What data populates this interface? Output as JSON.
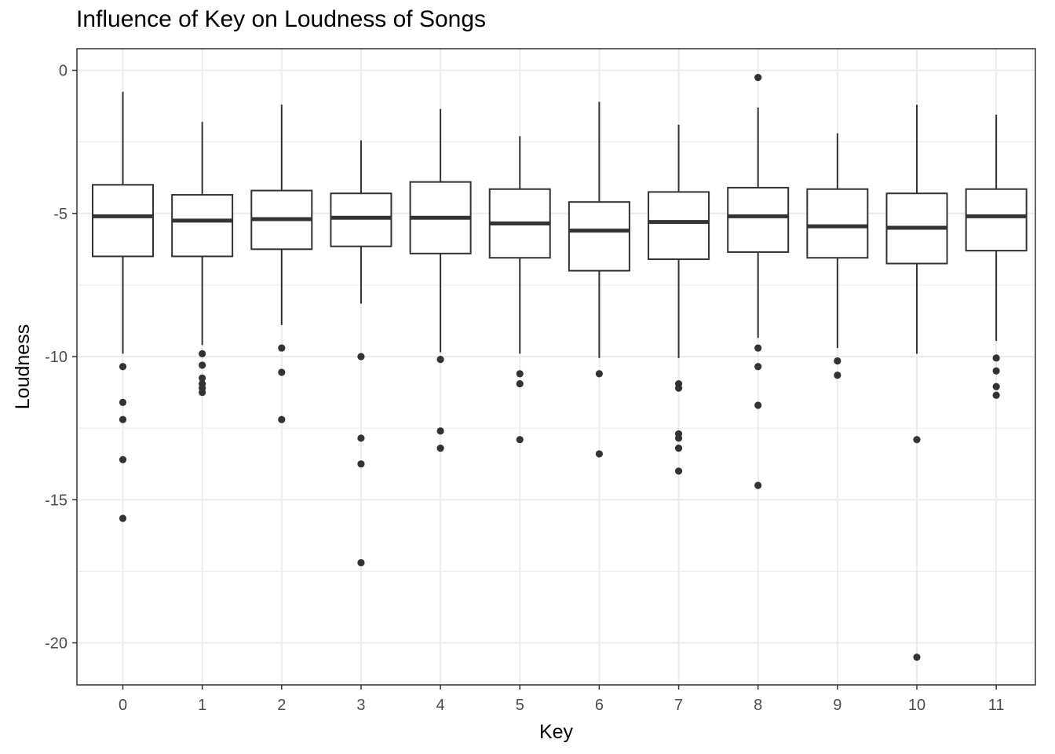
{
  "chart_data": {
    "type": "boxplot",
    "title": "Influence of Key on Loudness of Songs",
    "xlabel": "Key",
    "ylabel": "Loudness",
    "categories": [
      "0",
      "1",
      "2",
      "3",
      "4",
      "5",
      "6",
      "7",
      "8",
      "9",
      "10",
      "11"
    ],
    "y_ticks": [
      0,
      -5,
      -10,
      -15,
      -20
    ],
    "ylim": [
      -21.5,
      0.7
    ],
    "grid": true,
    "theme": "bw",
    "colors": {
      "box_stroke": "#333333",
      "box_fill": "#ffffff",
      "grid": "#ebebeb",
      "panel_border": "#333333"
    },
    "boxes": [
      {
        "key": "0",
        "min": -9.9,
        "q1": -6.5,
        "median": -5.1,
        "q3": -4.0,
        "max": -0.75,
        "outliers": [
          -10.35,
          -11.6,
          -12.2,
          -13.6,
          -15.65
        ]
      },
      {
        "key": "1",
        "min": -9.6,
        "q1": -6.5,
        "median": -5.25,
        "q3": -4.35,
        "max": -1.8,
        "outliers": [
          -9.9,
          -10.3,
          -10.75,
          -10.95,
          -11.1,
          -11.25
        ]
      },
      {
        "key": "2",
        "min": -8.9,
        "q1": -6.25,
        "median": -5.2,
        "q3": -4.2,
        "max": -1.2,
        "outliers": [
          -9.7,
          -10.55,
          -12.2
        ]
      },
      {
        "key": "3",
        "min": -8.15,
        "q1": -6.15,
        "median": -5.15,
        "q3": -4.3,
        "max": -2.45,
        "outliers": [
          -10.0,
          -12.85,
          -13.75,
          -17.2
        ]
      },
      {
        "key": "4",
        "min": -9.85,
        "q1": -6.4,
        "median": -5.15,
        "q3": -3.9,
        "max": -1.35,
        "outliers": [
          -10.1,
          -12.6,
          -13.2
        ]
      },
      {
        "key": "5",
        "min": -9.9,
        "q1": -6.55,
        "median": -5.35,
        "q3": -4.15,
        "max": -2.3,
        "outliers": [
          -10.6,
          -10.95,
          -12.9
        ]
      },
      {
        "key": "6",
        "min": -10.05,
        "q1": -7.0,
        "median": -5.6,
        "q3": -4.6,
        "max": -1.1,
        "outliers": [
          -10.6,
          -13.4
        ]
      },
      {
        "key": "7",
        "min": -10.05,
        "q1": -6.6,
        "median": -5.3,
        "q3": -4.25,
        "max": -1.9,
        "outliers": [
          -10.95,
          -11.1,
          -12.7,
          -12.85,
          -13.2,
          -14.0
        ]
      },
      {
        "key": "8",
        "min": -9.35,
        "q1": -6.35,
        "median": -5.1,
        "q3": -4.1,
        "max": -1.3,
        "outliers": [
          -0.25,
          -9.7,
          -10.35,
          -11.7,
          -14.5
        ]
      },
      {
        "key": "9",
        "min": -9.7,
        "q1": -6.55,
        "median": -5.45,
        "q3": -4.15,
        "max": -2.2,
        "outliers": [
          -10.15,
          -10.65
        ]
      },
      {
        "key": "10",
        "min": -9.9,
        "q1": -6.75,
        "median": -5.5,
        "q3": -4.3,
        "max": -1.2,
        "outliers": [
          -12.9,
          -20.5
        ]
      },
      {
        "key": "11",
        "min": -9.45,
        "q1": -6.3,
        "median": -5.1,
        "q3": -4.15,
        "max": -1.55,
        "outliers": [
          -10.05,
          -10.5,
          -11.05,
          -11.35
        ]
      }
    ]
  }
}
